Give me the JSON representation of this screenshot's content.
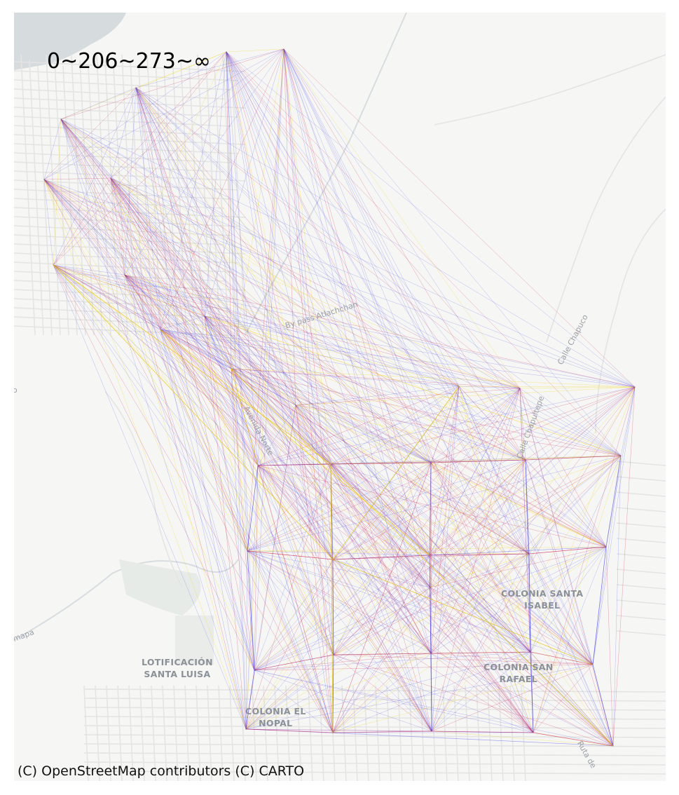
{
  "title": "0~206~273~∞",
  "attribution": "(C) OpenStreetMap contributors (C) CARTO",
  "basemap": {
    "places": [
      {
        "id": "colonia-santa-isabel",
        "lines": [
          "COLONIA SANTA",
          "ISABEL"
        ]
      },
      {
        "id": "colonia-san-rafael",
        "lines": [
          "COLONIA SAN",
          "RAFAEL"
        ]
      },
      {
        "id": "lotificacion-santa-luisa",
        "lines": [
          "LOTIFICACIÓN",
          "SANTA LUISA"
        ]
      },
      {
        "id": "colonia-el-nopal",
        "lines": [
          "COLONIA EL",
          "NOPAL"
        ]
      }
    ],
    "streets": [
      "By pass Atlachchan",
      "Calle Chapuco",
      "Avenida Norte",
      "Calle Chapultepe",
      "Ruta de",
      "mapa",
      "o"
    ]
  },
  "network": {
    "colors": {
      "low": "#3333ee",
      "mid": "#cc2255",
      "high": "#f2d000",
      "water": "#d6dbde",
      "road": "#e4e4e4"
    },
    "node_count": 36,
    "class_breaks": [
      0,
      206,
      273
    ]
  }
}
